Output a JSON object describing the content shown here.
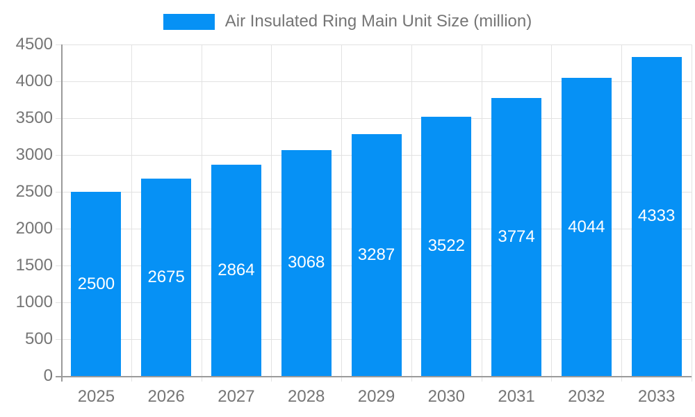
{
  "legend": {
    "label": "Air Insulated Ring Main Unit Size (million)"
  },
  "chart_data": {
    "type": "bar",
    "title": "Air Insulated Ring Main Unit Size (million)",
    "categories": [
      "2025",
      "2026",
      "2027",
      "2028",
      "2029",
      "2030",
      "2031",
      "2032",
      "2033"
    ],
    "values": [
      2500,
      2675,
      2864,
      3068,
      3287,
      3522,
      3774,
      4044,
      4333
    ],
    "yticks": [
      0,
      500,
      1000,
      1500,
      2000,
      2500,
      3000,
      3500,
      4000,
      4500
    ],
    "ylim": [
      0,
      4500
    ],
    "xlabel": "",
    "ylabel": "",
    "grid": true,
    "legend_position": "top",
    "value_labels": "centered-inside-bars",
    "colors": {
      "bar": "#0691f5",
      "bar_value_text": "#ffffff",
      "grid": "#e2e2e2",
      "axis": "#9a9a9a",
      "tick_text": "#757575",
      "legend_text": "#757575",
      "background": "#ffffff"
    }
  }
}
